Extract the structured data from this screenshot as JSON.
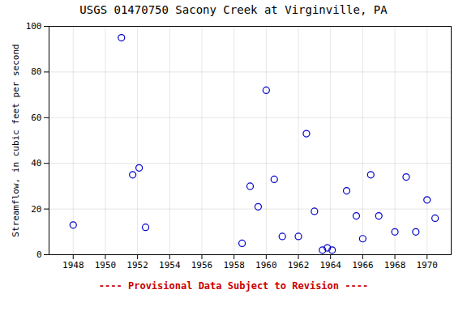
{
  "chart_data": {
    "type": "scatter",
    "title": "USGS 01470750 Sacony Creek at Virginville, PA",
    "ylabel": "Streamflow, in cubic feet per second",
    "annotation": {
      "text": "---- Provisional Data Subject to Revision ----",
      "color": "#cc0000"
    },
    "x": [
      1948,
      1951,
      1951.7,
      1952.1,
      1952.5,
      1958.5,
      1959.0,
      1959.5,
      1960.0,
      1960.5,
      1961.0,
      1962.0,
      1962.5,
      1963.0,
      1963.5,
      1963.8,
      1964.1,
      1965.0,
      1965.6,
      1966.0,
      1966.5,
      1967.0,
      1968.0,
      1968.7,
      1969.3,
      1970.0,
      1970.5
    ],
    "values": [
      13,
      95,
      35,
      38,
      12,
      5,
      30,
      21,
      72,
      33,
      8,
      8,
      53,
      19,
      2,
      3,
      2,
      28,
      17,
      7,
      35,
      17,
      10,
      34,
      10,
      24,
      16
    ],
    "color": "#0000cc",
    "marker": "open circle",
    "xlim": [
      1946.5,
      1971.5
    ],
    "ylim": [
      0,
      100
    ],
    "xticks": [
      1948,
      1950,
      1952,
      1954,
      1956,
      1958,
      1960,
      1962,
      1964,
      1966,
      1968,
      1970
    ],
    "yticks": [
      0,
      20,
      40,
      60,
      80,
      100
    ],
    "grid": true
  }
}
